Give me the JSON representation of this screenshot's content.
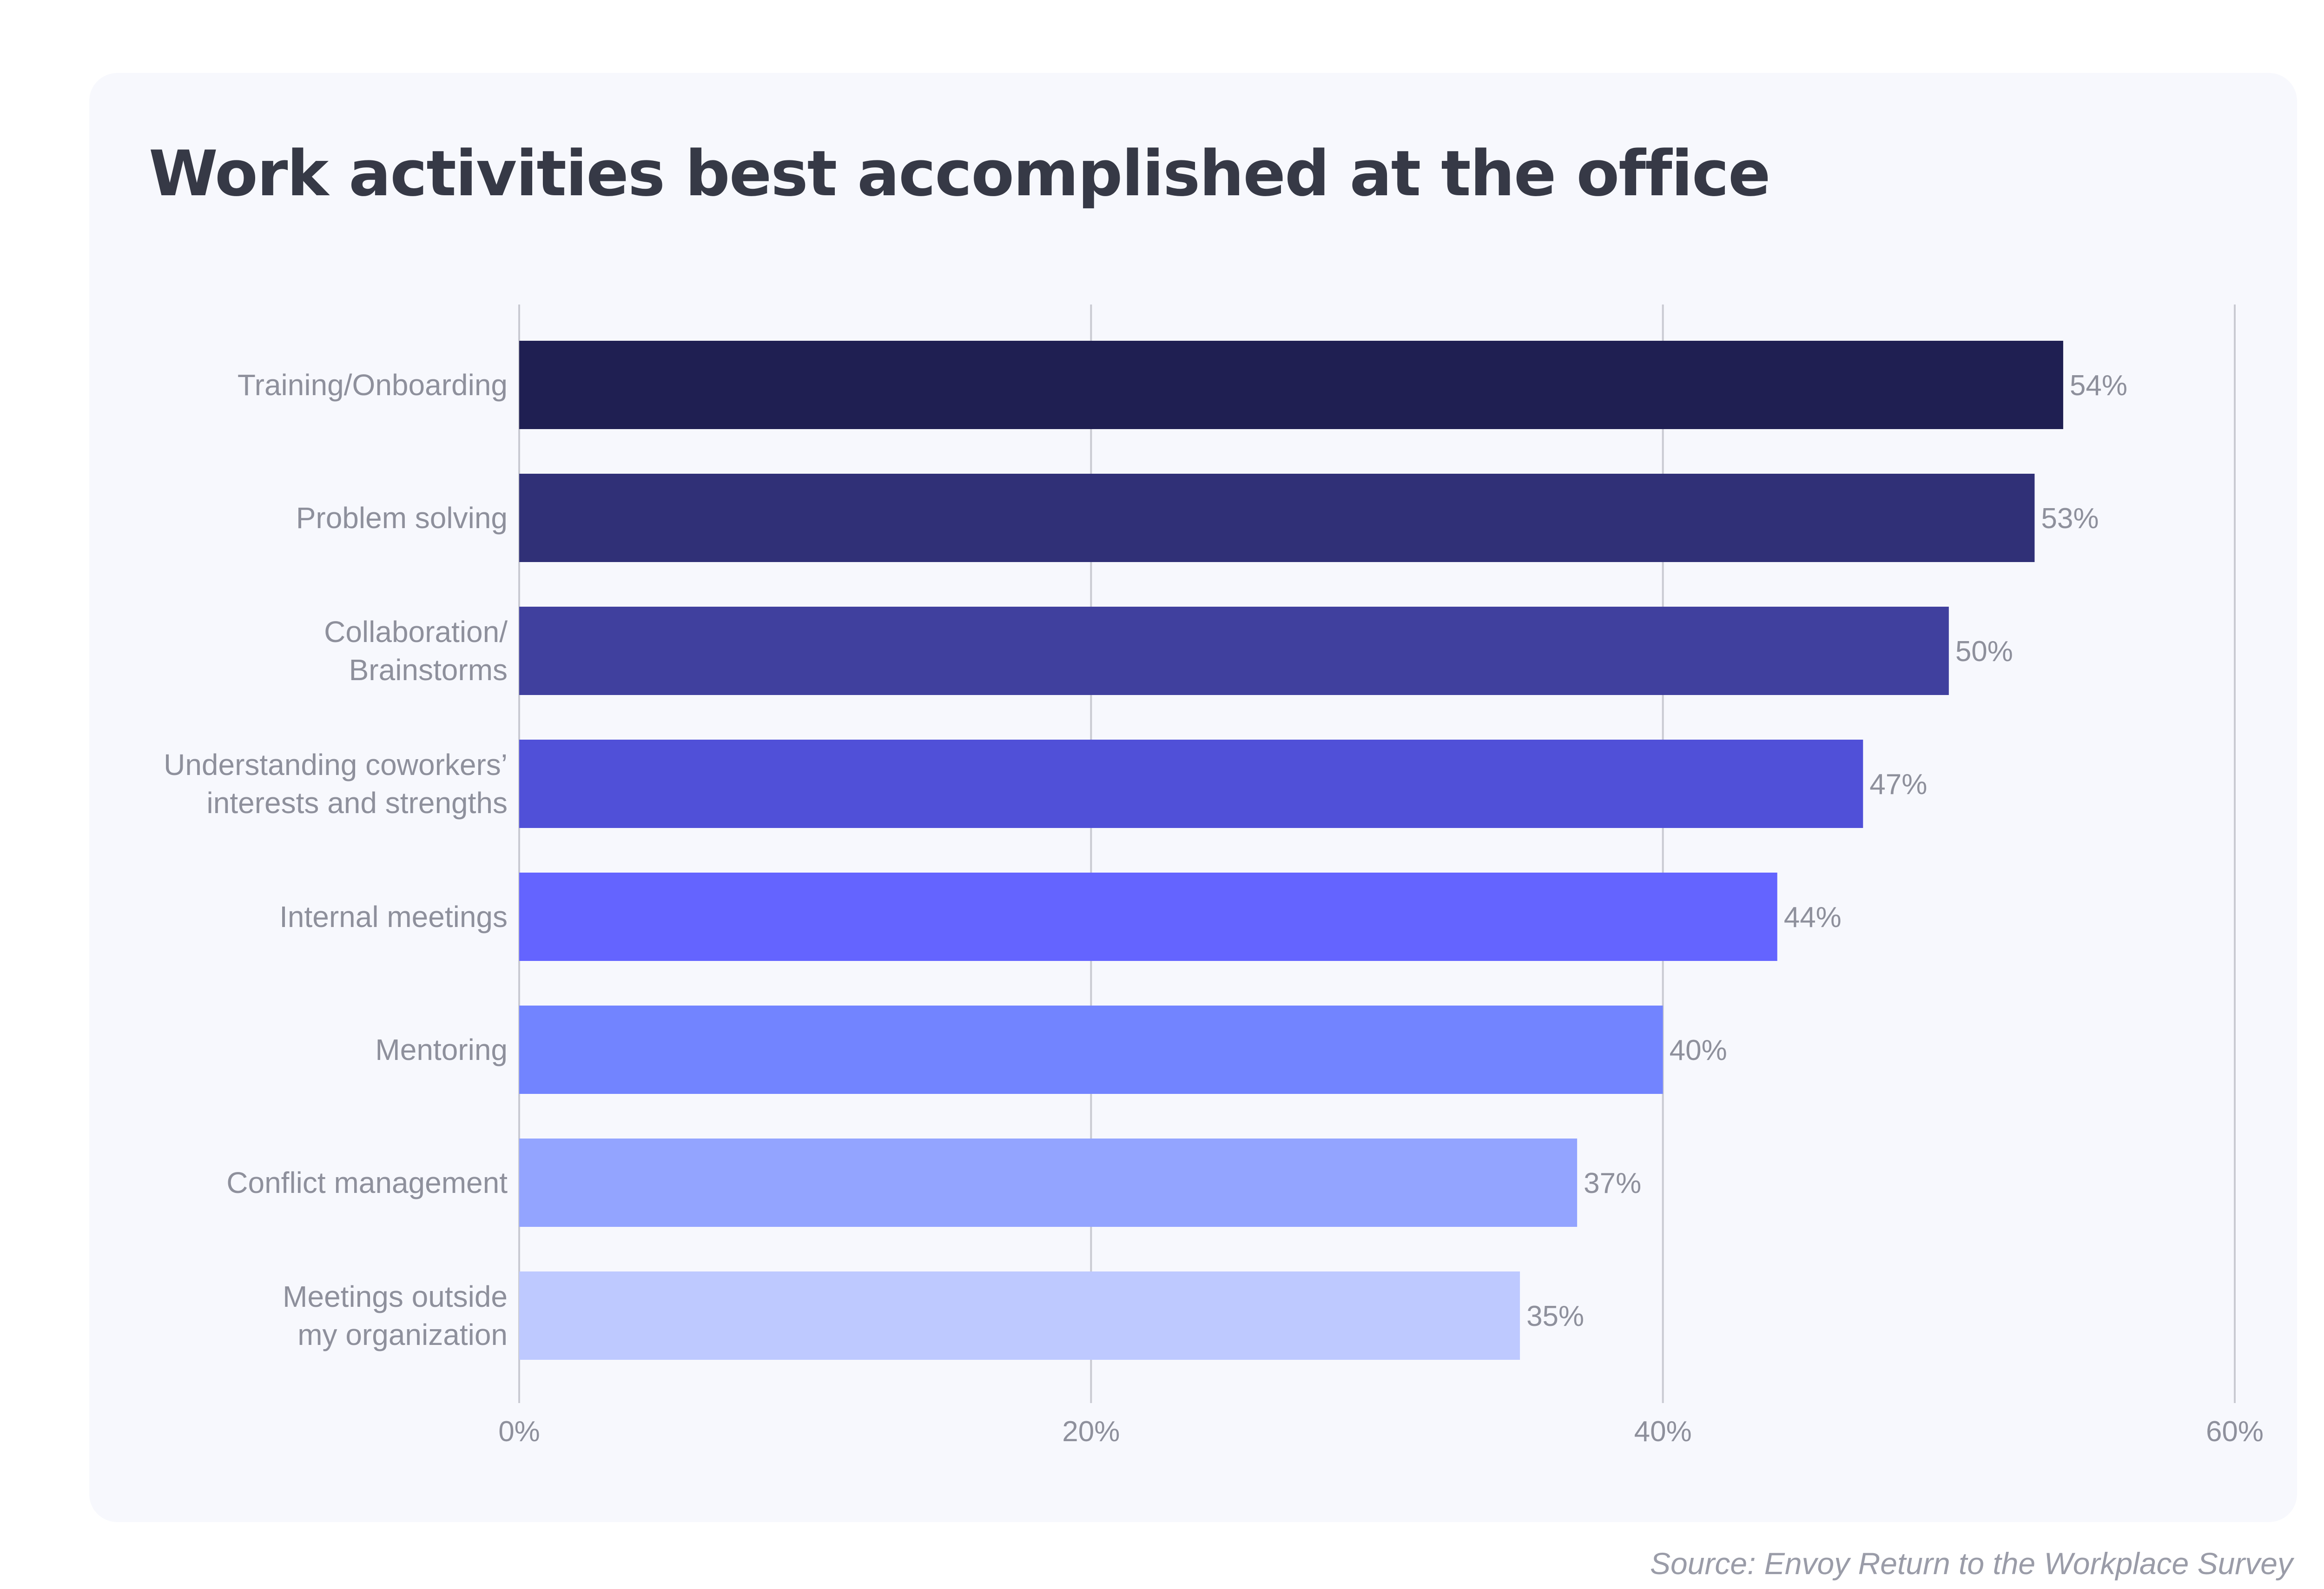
{
  "chart_data": {
    "type": "bar",
    "orientation": "horizontal",
    "title": "Work activities best accomplished at the office",
    "source": "Source: Envoy Return to the Workplace Survey",
    "xlabel": "",
    "ylabel": "",
    "xlim": [
      0,
      60
    ],
    "x_ticks": [
      {
        "value": 0,
        "label": "0%"
      },
      {
        "value": 20,
        "label": "20%"
      },
      {
        "value": 40,
        "label": "40%"
      },
      {
        "value": 60,
        "label": "60%"
      }
    ],
    "grid": true,
    "legend": "none",
    "categories": [
      {
        "lines": [
          "Training/Onboarding"
        ]
      },
      {
        "lines": [
          "Problem solving"
        ]
      },
      {
        "lines": [
          "Collaboration/",
          "Brainstorms"
        ]
      },
      {
        "lines": [
          "Understanding coworkers’",
          "interests and strengths"
        ]
      },
      {
        "lines": [
          "Internal meetings"
        ]
      },
      {
        "lines": [
          "Mentoring"
        ]
      },
      {
        "lines": [
          "Conflict management"
        ]
      },
      {
        "lines": [
          "Meetings outside",
          "my organization"
        ]
      }
    ],
    "values": [
      54,
      53,
      50,
      47,
      44,
      40,
      37,
      35
    ],
    "value_labels": [
      "54%",
      "53%",
      "50%",
      "47%",
      "44%",
      "40%",
      "37%",
      "35%"
    ],
    "bar_colors": [
      "#1f1f52",
      "#303077",
      "#40409e",
      "#5050d8",
      "#6464ff",
      "#7284ff",
      "#93a4ff",
      "#bec9ff"
    ],
    "gridline_color": "#c9cad2",
    "text_color": "#8e909c"
  }
}
